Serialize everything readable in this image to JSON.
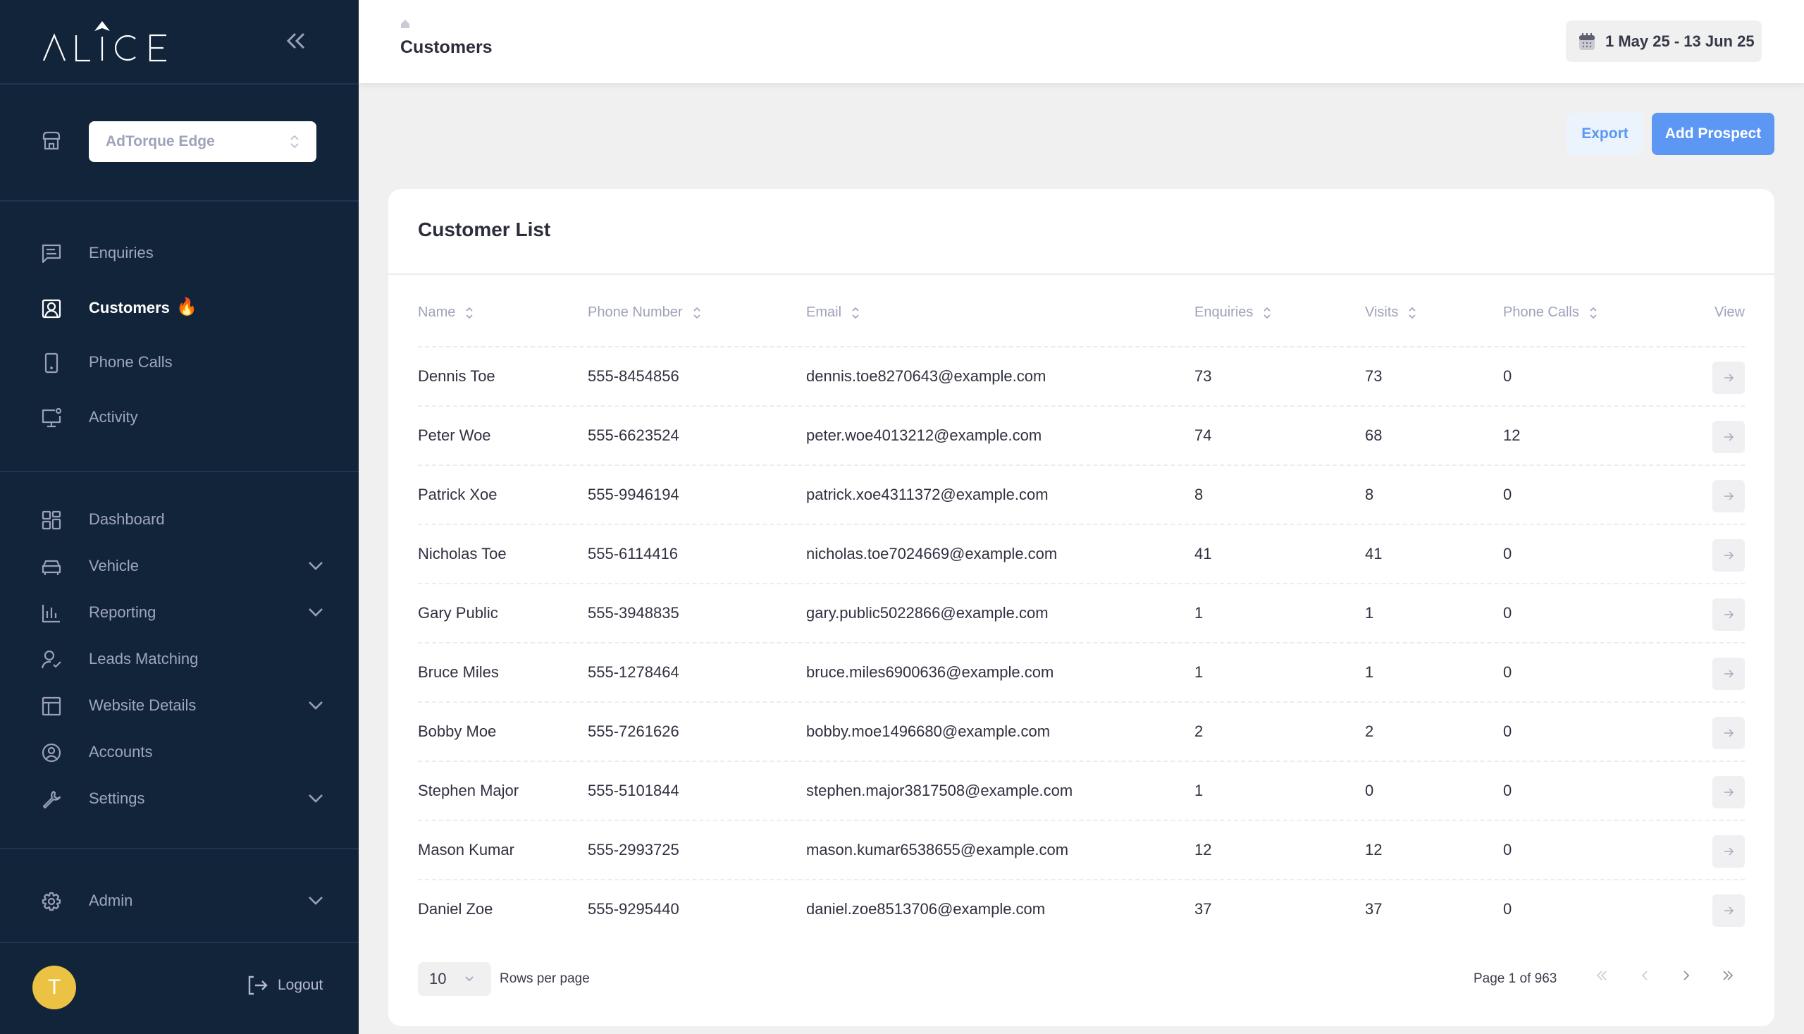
{
  "brand": {
    "logo_text": "ALICE"
  },
  "sidebar": {
    "dealer_select": "AdTorque Edge",
    "items": [
      {
        "label": "Enquiries",
        "icon": "message-icon"
      },
      {
        "label": "Customers",
        "icon": "user-square-icon",
        "active": true,
        "badge": "🔥"
      },
      {
        "label": "Phone Calls",
        "icon": "phone-device-icon"
      },
      {
        "label": "Activity",
        "icon": "monitor-icon"
      },
      {
        "label": "Dashboard",
        "icon": "grid-icon"
      },
      {
        "label": "Vehicle",
        "icon": "car-icon",
        "expandable": true
      },
      {
        "label": "Reporting",
        "icon": "bar-chart-icon",
        "expandable": true
      },
      {
        "label": "Leads Matching",
        "icon": "user-check-icon"
      },
      {
        "label": "Website Details",
        "icon": "layout-icon",
        "expandable": true
      },
      {
        "label": "Accounts",
        "icon": "user-circle-icon"
      },
      {
        "label": "Settings",
        "icon": "wrench-icon",
        "expandable": true
      },
      {
        "label": "Admin",
        "icon": "gear-icon",
        "expandable": true
      }
    ],
    "avatar_initial": "T",
    "logout_label": "Logout"
  },
  "header": {
    "title": "Customers",
    "date_range": "1 May 25 - 13 Jun 25"
  },
  "actions": {
    "export_label": "Export",
    "add_label": "Add Prospect"
  },
  "colors": {
    "sidebar": "#12243a",
    "accent": "#5b97f3",
    "avatar": "#ecc244"
  },
  "table": {
    "title": "Customer List",
    "columns": [
      "Name",
      "Phone Number",
      "Email",
      "Enquiries",
      "Visits",
      "Phone Calls",
      "View"
    ],
    "rows": [
      [
        "Dennis Toe",
        "555-8454856",
        "dennis.toe8270643@example.com",
        "73",
        "73",
        "0"
      ],
      [
        "Peter Woe",
        "555-6623524",
        "peter.woe4013212@example.com",
        "74",
        "68",
        "12"
      ],
      [
        "Patrick Xoe",
        "555-9946194",
        "patrick.xoe4311372@example.com",
        "8",
        "8",
        "0"
      ],
      [
        "Nicholas Toe",
        "555-6114416",
        "nicholas.toe7024669@example.com",
        "41",
        "41",
        "0"
      ],
      [
        "Gary Public",
        "555-3948835",
        "gary.public5022866@example.com",
        "1",
        "1",
        "0"
      ],
      [
        "Bruce Miles",
        "555-1278464",
        "bruce.miles6900636@example.com",
        "1",
        "1",
        "0"
      ],
      [
        "Bobby Moe",
        "555-7261626",
        "bobby.moe1496680@example.com",
        "2",
        "2",
        "0"
      ],
      [
        "Stephen Major",
        "555-5101844",
        "stephen.major3817508@example.com",
        "1",
        "0",
        "0"
      ],
      [
        "Mason Kumar",
        "555-2993725",
        "mason.kumar6538655@example.com",
        "12",
        "12",
        "0"
      ],
      [
        "Daniel Zoe",
        "555-9295440",
        "daniel.zoe8513706@example.com",
        "37",
        "37",
        "0"
      ]
    ],
    "rows_per_page": "10",
    "rows_per_page_label": "Rows per page",
    "page_label": "Page 1 of 963"
  }
}
